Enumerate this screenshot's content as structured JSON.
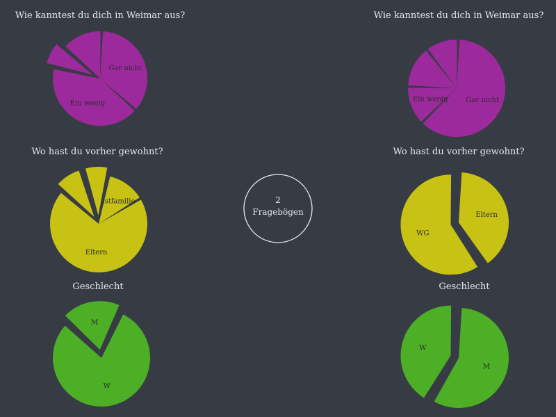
{
  "center": {
    "count": "2",
    "label": "Fragebögen"
  },
  "chart_data": [
    {
      "type": "pie",
      "title": "Wie kanntest du dich in Weimar aus?",
      "color": "#9c2a9c",
      "slices": [
        {
          "label": "Gar nicht",
          "value": 0.36,
          "explode": false
        },
        {
          "label": "Ein wenig",
          "value": 0.42,
          "explode": false
        },
        {
          "label": "",
          "value": 0.08,
          "explode": true
        },
        {
          "label": "",
          "value": 0.14,
          "explode": false
        }
      ]
    },
    {
      "type": "pie",
      "title": "Wie kanntest du dich in Weimar aus?",
      "color": "#9c2a9c",
      "slices": [
        {
          "label": "Gar nicht",
          "value": 0.62,
          "explode": false
        },
        {
          "label": "Ein wenig",
          "value": 0.13,
          "explode": false
        },
        {
          "label": "",
          "value": 0.14,
          "explode": false
        },
        {
          "label": "",
          "value": 0.11,
          "explode": false
        }
      ]
    },
    {
      "type": "pie",
      "title": "Wo hast du vorher gewohnt?",
      "color": "#c8c214",
      "slices": [
        {
          "label": "Gastfamilie",
          "value": 0.13,
          "explode": false
        },
        {
          "label": "Eltern",
          "value": 0.7,
          "explode": false
        },
        {
          "label": "",
          "value": 0.09,
          "explode": true
        },
        {
          "label": "",
          "value": 0.08,
          "explode": true
        }
      ]
    },
    {
      "type": "pie",
      "title": "Wo hast du vorher gewohnt?",
      "color": "#c8c214",
      "slices": [
        {
          "label": "Eltern",
          "value": 0.4,
          "explode": false
        },
        {
          "label": "WG",
          "value": 0.6,
          "explode": true
        }
      ]
    },
    {
      "type": "pie",
      "title": "Geschlecht",
      "color": "#4caf25",
      "slices": [
        {
          "label": "W",
          "value": 0.8,
          "explode": false
        },
        {
          "label": "M",
          "value": 0.2,
          "explode": true
        }
      ]
    },
    {
      "type": "pie",
      "title": "Geschlecht",
      "color": "#4caf25",
      "slices": [
        {
          "label": "M",
          "value": 0.58,
          "explode": false
        },
        {
          "label": "W",
          "value": 0.42,
          "explode": true
        }
      ]
    }
  ]
}
